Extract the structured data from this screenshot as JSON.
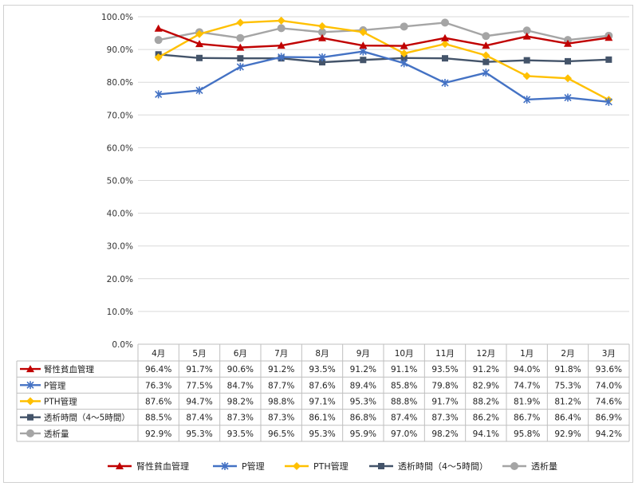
{
  "chart_data": {
    "type": "line",
    "title": "",
    "xlabel": "",
    "ylabel": "",
    "ylim": [
      0,
      100
    ],
    "y_tick_labels": [
      "0.0%",
      "10.0%",
      "20.0%",
      "30.0%",
      "40.0%",
      "50.0%",
      "60.0%",
      "70.0%",
      "80.0%",
      "90.0%",
      "100.0%"
    ],
    "grid": true,
    "legend_position": "bottom",
    "data_table": true,
    "categories": [
      "4月",
      "5月",
      "6月",
      "7月",
      "8月",
      "9月",
      "10月",
      "11月",
      "12月",
      "1月",
      "2月",
      "3月"
    ],
    "series": [
      {
        "name": "腎性貧血管理",
        "color": "#C00000",
        "marker": "triangle",
        "values": [
          96.4,
          91.7,
          90.6,
          91.2,
          93.5,
          91.2,
          91.1,
          93.5,
          91.2,
          94.0,
          91.8,
          93.6
        ],
        "labels": [
          "96.4%",
          "91.7%",
          "90.6%",
          "91.2%",
          "93.5%",
          "91.2%",
          "91.1%",
          "93.5%",
          "91.2%",
          "94.0%",
          "91.8%",
          "93.6%"
        ]
      },
      {
        "name": "P管理",
        "color": "#4472C4",
        "marker": "star",
        "values": [
          76.3,
          77.5,
          84.7,
          87.7,
          87.6,
          89.4,
          85.8,
          79.8,
          82.9,
          74.7,
          75.3,
          74.0
        ],
        "labels": [
          "76.3%",
          "77.5%",
          "84.7%",
          "87.7%",
          "87.6%",
          "89.4%",
          "85.8%",
          "79.8%",
          "82.9%",
          "74.7%",
          "75.3%",
          "74.0%"
        ]
      },
      {
        "name": "PTH管理",
        "color": "#FFC000",
        "marker": "diamond",
        "values": [
          87.6,
          94.7,
          98.2,
          98.8,
          97.1,
          95.3,
          88.8,
          91.7,
          88.2,
          81.9,
          81.2,
          74.6
        ],
        "labels": [
          "87.6%",
          "94.7%",
          "98.2%",
          "98.8%",
          "97.1%",
          "95.3%",
          "88.8%",
          "91.7%",
          "88.2%",
          "81.9%",
          "81.2%",
          "74.6%"
        ]
      },
      {
        "name": "透析時間（4～5時間）",
        "color": "#44546A",
        "marker": "square",
        "values": [
          88.5,
          87.4,
          87.3,
          87.3,
          86.1,
          86.8,
          87.4,
          87.3,
          86.2,
          86.7,
          86.4,
          86.9
        ],
        "labels": [
          "88.5%",
          "87.4%",
          "87.3%",
          "87.3%",
          "86.1%",
          "86.8%",
          "87.4%",
          "87.3%",
          "86.2%",
          "86.7%",
          "86.4%",
          "86.9%"
        ]
      },
      {
        "name": "透析量",
        "color": "#A5A5A5",
        "marker": "circle",
        "values": [
          92.9,
          95.3,
          93.5,
          96.5,
          95.3,
          95.9,
          97.0,
          98.2,
          94.1,
          95.8,
          92.9,
          94.2
        ],
        "labels": [
          "92.9%",
          "95.3%",
          "93.5%",
          "96.5%",
          "95.3%",
          "95.9%",
          "97.0%",
          "98.2%",
          "94.1%",
          "95.8%",
          "92.9%",
          "94.2%"
        ]
      }
    ]
  }
}
